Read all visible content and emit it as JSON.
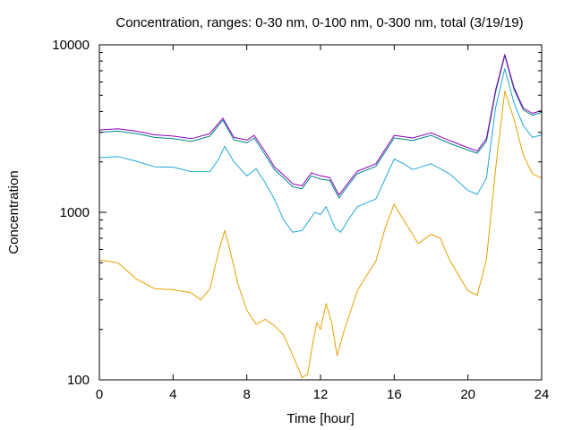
{
  "chart_data": {
    "type": "line",
    "title": "Concentration, ranges: 0-30 nm, 0-100 nm, 0-300 nm, total (3/19/19)",
    "xlabel": "Time [hour]",
    "ylabel": "Concentration",
    "xlim": [
      0,
      24
    ],
    "ylim": [
      100,
      10000
    ],
    "yscale": "log",
    "grid": false,
    "legend": "none",
    "x_ticks": [
      {
        "value": 0,
        "label": "0"
      },
      {
        "value": 4,
        "label": "4"
      },
      {
        "value": 8,
        "label": "8"
      },
      {
        "value": 12,
        "label": "12"
      },
      {
        "value": 16,
        "label": "16"
      },
      {
        "value": 20,
        "label": "20"
      },
      {
        "value": 24,
        "label": "24"
      }
    ],
    "y_ticks": [
      {
        "value": 100,
        "label": "100"
      },
      {
        "value": 1000,
        "label": "1000"
      },
      {
        "value": 10000,
        "label": "10000"
      }
    ],
    "series": [
      {
        "color": "#e8a000",
        "points": [
          [
            0,
            520
          ],
          [
            1,
            500
          ],
          [
            2,
            400
          ],
          [
            3,
            350
          ],
          [
            4,
            345
          ],
          [
            5,
            330
          ],
          [
            5.5,
            300
          ],
          [
            6,
            350
          ],
          [
            6.5,
            600
          ],
          [
            6.8,
            780
          ],
          [
            7,
            650
          ],
          [
            7.5,
            380
          ],
          [
            8,
            260
          ],
          [
            8.5,
            215
          ],
          [
            9,
            230
          ],
          [
            9.5,
            210
          ],
          [
            10,
            185
          ],
          [
            10.5,
            140
          ],
          [
            11,
            103
          ],
          [
            11.3,
            108
          ],
          [
            11.6,
            170
          ],
          [
            11.8,
            220
          ],
          [
            12,
            200
          ],
          [
            12.3,
            285
          ],
          [
            12.6,
            220
          ],
          [
            12.9,
            140
          ],
          [
            13.3,
            200
          ],
          [
            14,
            340
          ],
          [
            14.5,
            420
          ],
          [
            15,
            510
          ],
          [
            15.5,
            800
          ],
          [
            16,
            1120
          ],
          [
            16.3,
            980
          ],
          [
            16.8,
            800
          ],
          [
            17.3,
            650
          ],
          [
            18,
            740
          ],
          [
            18.5,
            700
          ],
          [
            19,
            520
          ],
          [
            19.5,
            420
          ],
          [
            20,
            340
          ],
          [
            20.5,
            320
          ],
          [
            21,
            520
          ],
          [
            21.5,
            1800
          ],
          [
            22,
            5300
          ],
          [
            22.5,
            3600
          ],
          [
            23,
            2200
          ],
          [
            23.5,
            1700
          ],
          [
            24,
            1600
          ]
        ]
      },
      {
        "color": "#20a8d8",
        "points": [
          [
            0,
            2120
          ],
          [
            1,
            2150
          ],
          [
            2,
            2020
          ],
          [
            3,
            1870
          ],
          [
            4,
            1860
          ],
          [
            5,
            1750
          ],
          [
            6,
            1750
          ],
          [
            6.5,
            2100
          ],
          [
            6.8,
            2480
          ],
          [
            7.3,
            2000
          ],
          [
            8,
            1650
          ],
          [
            8.5,
            1820
          ],
          [
            9,
            1500
          ],
          [
            9.5,
            1200
          ],
          [
            10,
            900
          ],
          [
            10.5,
            760
          ],
          [
            11,
            780
          ],
          [
            11.4,
            900
          ],
          [
            11.7,
            1000
          ],
          [
            12,
            970
          ],
          [
            12.3,
            1080
          ],
          [
            12.8,
            800
          ],
          [
            13.1,
            760
          ],
          [
            13.5,
            900
          ],
          [
            14,
            1080
          ],
          [
            15,
            1200
          ],
          [
            16,
            2080
          ],
          [
            16.5,
            1950
          ],
          [
            17,
            1800
          ],
          [
            18,
            1950
          ],
          [
            19,
            1700
          ],
          [
            20,
            1350
          ],
          [
            20.5,
            1280
          ],
          [
            21,
            1600
          ],
          [
            21.5,
            4200
          ],
          [
            22,
            7200
          ],
          [
            22.5,
            4500
          ],
          [
            23,
            3300
          ],
          [
            23.5,
            2800
          ],
          [
            24,
            2900
          ]
        ]
      },
      {
        "color": "#008888",
        "points": [
          [
            0,
            3000
          ],
          [
            1,
            3050
          ],
          [
            2,
            2950
          ],
          [
            3,
            2800
          ],
          [
            4,
            2750
          ],
          [
            5,
            2650
          ],
          [
            6,
            2850
          ],
          [
            6.7,
            3550
          ],
          [
            7.3,
            2700
          ],
          [
            8,
            2600
          ],
          [
            8.4,
            2780
          ],
          [
            9,
            2200
          ],
          [
            9.5,
            1800
          ],
          [
            10,
            1600
          ],
          [
            10.5,
            1420
          ],
          [
            11,
            1380
          ],
          [
            11.5,
            1650
          ],
          [
            12,
            1580
          ],
          [
            12.5,
            1550
          ],
          [
            13,
            1220
          ],
          [
            13.5,
            1450
          ],
          [
            14,
            1700
          ],
          [
            15,
            1880
          ],
          [
            16,
            2780
          ],
          [
            17,
            2680
          ],
          [
            18,
            2880
          ],
          [
            19,
            2580
          ],
          [
            20,
            2350
          ],
          [
            20.5,
            2250
          ],
          [
            21,
            2650
          ],
          [
            21.5,
            5200
          ],
          [
            22,
            8600
          ],
          [
            22.5,
            5400
          ],
          [
            23,
            4100
          ],
          [
            23.5,
            3800
          ],
          [
            24,
            3950
          ]
        ]
      },
      {
        "color": "#8a00b8",
        "points": [
          [
            0,
            3100
          ],
          [
            1,
            3150
          ],
          [
            2,
            3050
          ],
          [
            3,
            2900
          ],
          [
            4,
            2850
          ],
          [
            5,
            2750
          ],
          [
            6,
            2950
          ],
          [
            6.7,
            3650
          ],
          [
            7.3,
            2800
          ],
          [
            8,
            2700
          ],
          [
            8.4,
            2880
          ],
          [
            9,
            2300
          ],
          [
            9.5,
            1870
          ],
          [
            10,
            1670
          ],
          [
            10.5,
            1480
          ],
          [
            11,
            1440
          ],
          [
            11.5,
            1720
          ],
          [
            12,
            1650
          ],
          [
            12.5,
            1610
          ],
          [
            13,
            1270
          ],
          [
            13.5,
            1500
          ],
          [
            14,
            1760
          ],
          [
            15,
            1950
          ],
          [
            16,
            2880
          ],
          [
            17,
            2780
          ],
          [
            18,
            2980
          ],
          [
            19,
            2680
          ],
          [
            20,
            2430
          ],
          [
            20.5,
            2320
          ],
          [
            21,
            2750
          ],
          [
            21.5,
            5350
          ],
          [
            22,
            8750
          ],
          [
            22.5,
            5550
          ],
          [
            23,
            4200
          ],
          [
            23.5,
            3900
          ],
          [
            24,
            4050
          ]
        ]
      }
    ]
  }
}
